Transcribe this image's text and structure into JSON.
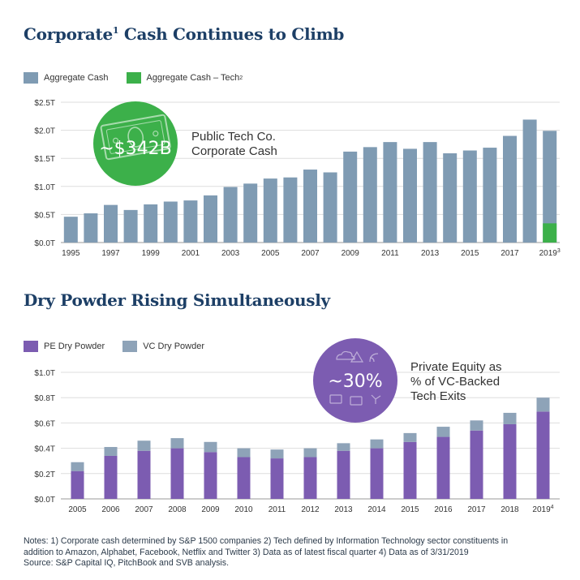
{
  "colors": {
    "title": "#1d3f66",
    "aggregate_cash": "#7f9bb3",
    "tech_cash": "#3cb04a",
    "pe": "#7c5cb1",
    "vc": "#8ea3b8",
    "grid": "#dddddd"
  },
  "chart_data": [
    {
      "id": "corporate-cash",
      "type": "bar",
      "title": "Corporate",
      "title_sup": "1",
      "title_rest": " Cash Continues to Climb",
      "legend": [
        {
          "label": "Aggregate Cash",
          "sup": ""
        },
        {
          "label": "Aggregate Cash – Tech",
          "sup": "2"
        }
      ],
      "ylim": [
        0,
        2.5
      ],
      "y_ticks": [
        0.0,
        0.5,
        1.0,
        1.5,
        2.0,
        2.5
      ],
      "y_tick_labels": [
        "$0.0T",
        "$0.5T",
        "$1.0T",
        "$1.5T",
        "$2.0T",
        "$2.5T"
      ],
      "categories": [
        "1995",
        "1996",
        "1997",
        "1998",
        "1999",
        "2000",
        "2001",
        "2002",
        "2003",
        "2004",
        "2005",
        "2006",
        "2007",
        "2008",
        "2009",
        "2010",
        "2011",
        "2012",
        "2013",
        "2014",
        "2015",
        "2016",
        "2017",
        "2018",
        "2019"
      ],
      "x_tick_labels": [
        "1995",
        "",
        "1997",
        "",
        "1999",
        "",
        "2001",
        "",
        "2003",
        "",
        "2005",
        "",
        "2007",
        "",
        "2009",
        "",
        "2011",
        "",
        "2013",
        "",
        "2015",
        "",
        "2017",
        "",
        "2019"
      ],
      "x_tick_sups": [
        "",
        "",
        "",
        "",
        "",
        "",
        "",
        "",
        "",
        "",
        "",
        "",
        "",
        "",
        "",
        "",
        "",
        "",
        "",
        "",
        "",
        "",
        "",
        "",
        "3"
      ],
      "series": [
        {
          "name": "Aggregate Cash",
          "values": [
            0.46,
            0.52,
            0.67,
            0.58,
            0.68,
            0.73,
            0.75,
            0.84,
            0.99,
            1.05,
            1.14,
            1.16,
            1.3,
            1.25,
            1.62,
            1.7,
            1.79,
            1.67,
            1.79,
            1.59,
            1.64,
            1.69,
            1.9,
            2.19,
            1.99
          ]
        },
        {
          "name": "Aggregate Cash – Tech",
          "values": [
            0,
            0,
            0,
            0,
            0,
            0,
            0,
            0,
            0,
            0,
            0,
            0,
            0,
            0,
            0,
            0,
            0,
            0,
            0,
            0,
            0,
            0,
            0,
            0,
            0.342
          ]
        }
      ],
      "callout": {
        "value": "~$342B",
        "text_line1": "Public Tech Co.",
        "text_line2": "Corporate Cash"
      }
    },
    {
      "id": "dry-powder",
      "type": "bar",
      "stacked": true,
      "title": "Dry Powder Rising Simultaneously",
      "legend": [
        {
          "label": "PE Dry Powder",
          "sup": ""
        },
        {
          "label": "VC Dry Powder",
          "sup": ""
        }
      ],
      "ylim": [
        0,
        1.0
      ],
      "y_ticks": [
        0.0,
        0.2,
        0.4,
        0.6,
        0.8,
        1.0
      ],
      "y_tick_labels": [
        "$0.0T",
        "$0.2T",
        "$0.4T",
        "$0.6T",
        "$0.8T",
        "$1.0T"
      ],
      "categories": [
        "2005",
        "2006",
        "2007",
        "2008",
        "2009",
        "2010",
        "2011",
        "2012",
        "2013",
        "2014",
        "2015",
        "2016",
        "2017",
        "2018",
        "2019"
      ],
      "x_tick_labels": [
        "2005",
        "2006",
        "2007",
        "2008",
        "2009",
        "2010",
        "2011",
        "2012",
        "2013",
        "2014",
        "2015",
        "2016",
        "2017",
        "2018",
        "2019"
      ],
      "x_tick_sups": [
        "",
        "",
        "",
        "",
        "",
        "",
        "",
        "",
        "",
        "",
        "",
        "",
        "",
        "",
        "4"
      ],
      "series": [
        {
          "name": "PE Dry Powder",
          "values": [
            0.22,
            0.34,
            0.38,
            0.4,
            0.37,
            0.33,
            0.32,
            0.33,
            0.38,
            0.4,
            0.45,
            0.49,
            0.54,
            0.59,
            0.69
          ]
        },
        {
          "name": "VC Dry Powder",
          "values": [
            0.07,
            0.07,
            0.08,
            0.08,
            0.08,
            0.07,
            0.07,
            0.07,
            0.06,
            0.07,
            0.07,
            0.08,
            0.08,
            0.09,
            0.11
          ]
        }
      ],
      "callout": {
        "value": "~30%",
        "text_line1": "Private Equity as",
        "text_line2": "% of VC-Backed",
        "text_line3": "Tech Exits"
      }
    }
  ],
  "notes": {
    "line1": "Notes: 1) Corporate cash determined by S&P 1500 companies 2) Tech defined by Information Technology sector constituents in",
    "line2": "addition to Amazon, Alphabet, Facebook, Netflix and Twitter 3) Data as of latest fiscal quarter 4) Data as of 3/31/2019",
    "line3": "Source: S&P Capital IQ, PitchBook and SVB analysis."
  }
}
